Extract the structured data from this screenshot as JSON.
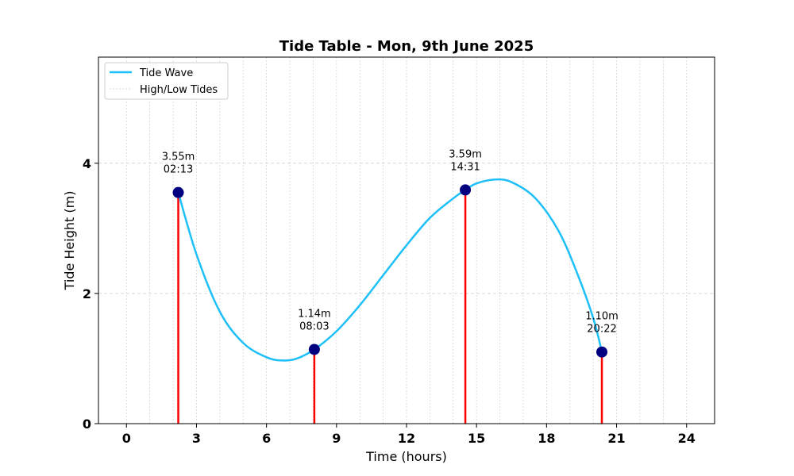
{
  "chart_data": {
    "type": "line",
    "title": "Tide Table - Mon, 9th June 2025",
    "xlabel": "Time (hours)",
    "ylabel": "Tide Height (m)",
    "xlim": [
      -1.2,
      25.2
    ],
    "ylim": [
      0,
      5.63
    ],
    "x_ticks": [
      0,
      3,
      6,
      9,
      12,
      15,
      18,
      21,
      24
    ],
    "x_minor_grid_step": 1,
    "y_ticks": [
      0,
      2,
      4
    ],
    "grid": true,
    "legend_position": "top-left",
    "series": [
      {
        "name": "Tide Wave",
        "color": "#1ec0f7",
        "curve": [
          [
            2.22,
            3.55
          ],
          [
            3.0,
            2.6
          ],
          [
            4.0,
            1.72
          ],
          [
            5.0,
            1.24
          ],
          [
            6.0,
            1.02
          ],
          [
            6.7,
            0.97
          ],
          [
            7.3,
            1.0
          ],
          [
            8.05,
            1.14
          ],
          [
            9.0,
            1.42
          ],
          [
            10.0,
            1.82
          ],
          [
            11.0,
            2.28
          ],
          [
            12.0,
            2.74
          ],
          [
            13.0,
            3.16
          ],
          [
            14.0,
            3.46
          ],
          [
            14.52,
            3.59
          ],
          [
            15.0,
            3.69
          ],
          [
            15.8,
            3.75
          ],
          [
            16.5,
            3.71
          ],
          [
            17.5,
            3.47
          ],
          [
            18.5,
            2.97
          ],
          [
            19.3,
            2.32
          ],
          [
            20.0,
            1.62
          ],
          [
            20.37,
            1.1
          ]
        ]
      },
      {
        "name": "High/Low Tides",
        "line_color": "#ff0000",
        "marker_color": "#000080",
        "points": [
          {
            "x": 2.22,
            "y": 3.55,
            "height_label": "3.55m",
            "time_label": "02:13"
          },
          {
            "x": 8.05,
            "y": 1.14,
            "height_label": "1.14m",
            "time_label": "08:03"
          },
          {
            "x": 14.52,
            "y": 3.59,
            "height_label": "3.59m",
            "time_label": "14:31"
          },
          {
            "x": 20.37,
            "y": 1.1,
            "height_label": "1.10m",
            "time_label": "20:22"
          }
        ]
      }
    ]
  }
}
